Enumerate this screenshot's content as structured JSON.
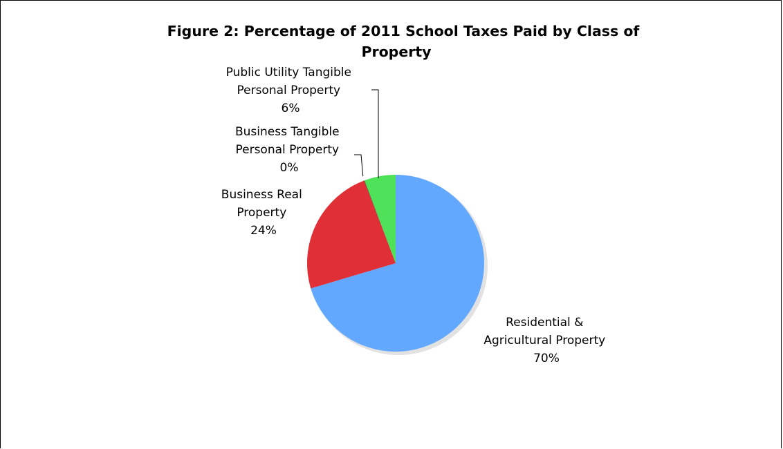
{
  "chart_data": {
    "type": "pie",
    "title_lines": [
      "Figure 2: Percentage of 2011 School Taxes  Paid by Class of",
      "Property"
    ],
    "slices": [
      {
        "label_lines": [
          "Residential &",
          "Agricultural Property"
        ],
        "value_text": "70%",
        "value": 70.4,
        "color": "#63A8FF"
      },
      {
        "label_lines": [
          "Business Real",
          "Property"
        ],
        "value_text": "24%",
        "value": 23.8,
        "color": "#E02F36"
      },
      {
        "label_lines": [
          "Business Tangible",
          "Personal Property"
        ],
        "value_text": "0%",
        "value": 0.1,
        "color": "#3C6B2A"
      },
      {
        "label_lines": [
          "Public Utility Tangible",
          "Personal Property"
        ],
        "value_text": "6%",
        "value": 5.7,
        "color": "#4EE159"
      }
    ]
  }
}
